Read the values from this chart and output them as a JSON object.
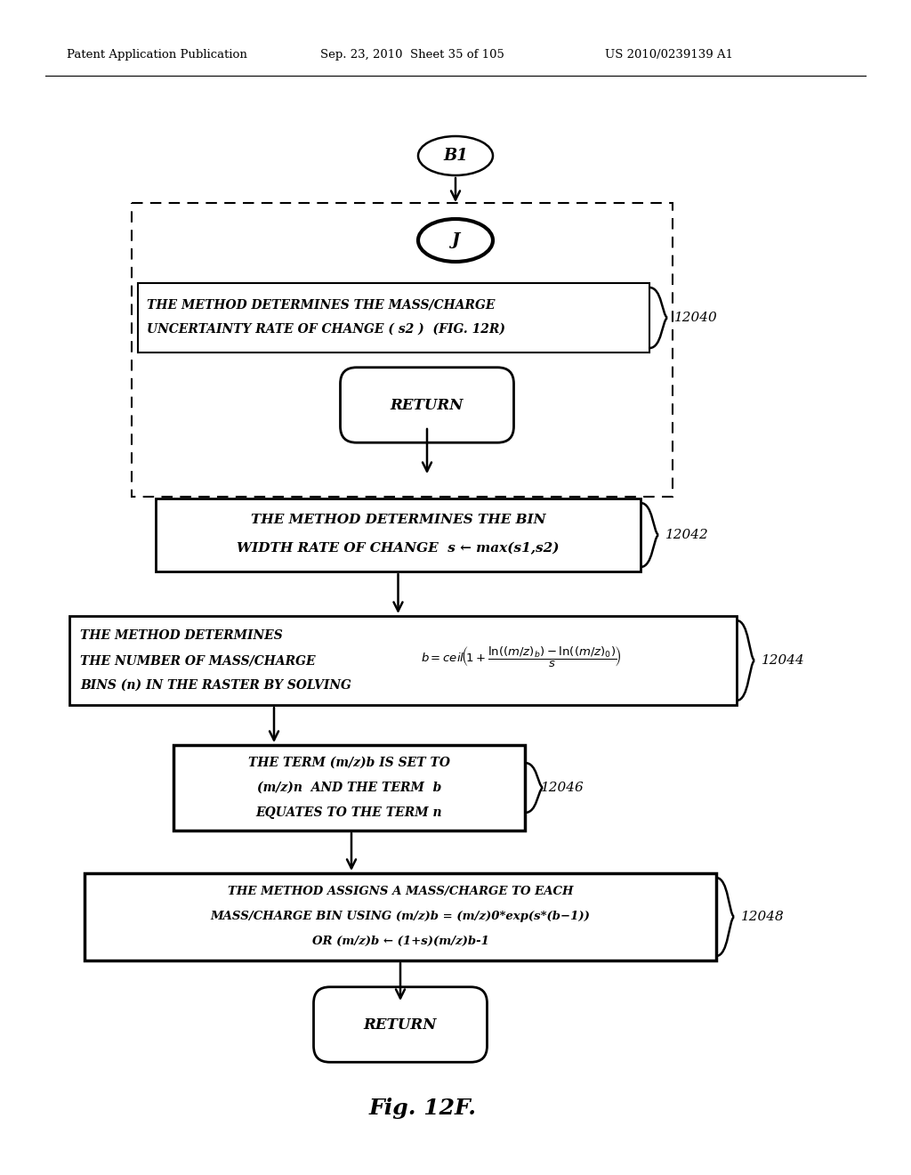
{
  "bg_color": "#ffffff",
  "header_left": "Patent Application Publication",
  "header_mid": "Sep. 23, 2010  Sheet 35 of 105",
  "header_right": "US 2010/0239139 A1",
  "figure_label": "Fig. 12F.",
  "label_B1": "B1",
  "label_J": "J",
  "label_12040_line1": "THE METHOD DETERMINES THE MASS/CHARGE",
  "label_12040_line2": "UNCERTAINTY RATE OF CHANGE ( s2 )  (FIG. 12R)",
  "num_12040": "12040",
  "label_return1": "RETURN",
  "label_12042_line1": "THE METHOD DETERMINES THE BIN",
  "label_12042_line2": "WIDTH RATE OF CHANGE  s ← max(s1,s2)",
  "num_12042": "12042",
  "label_12044_line1": "THE METHOD DETERMINES",
  "label_12044_line2": "THE NUMBER OF MASS/CHARGE",
  "label_12044_line3": "BINS (n) IN THE RASTER BY SOLVING",
  "num_12044": "12044",
  "label_12046_line1": "THE TERM (m/z)b IS SET TO",
  "label_12046_line2": "(m/z)n  AND THE TERM  b",
  "label_12046_line3": "EQUATES TO THE TERM n",
  "num_12046": "12046",
  "label_12048_line1": "THE METHOD ASSIGNS A MASS/CHARGE TO EACH",
  "label_12048_line2": "MASS/CHARGE BIN USING (m/z)b = (m/z)0*exp(s*(b−1))",
  "label_12048_line3": "OR (m/z)b ← (1+s)(m/z)b-1",
  "num_12048": "12048",
  "label_return2": "RETURN"
}
